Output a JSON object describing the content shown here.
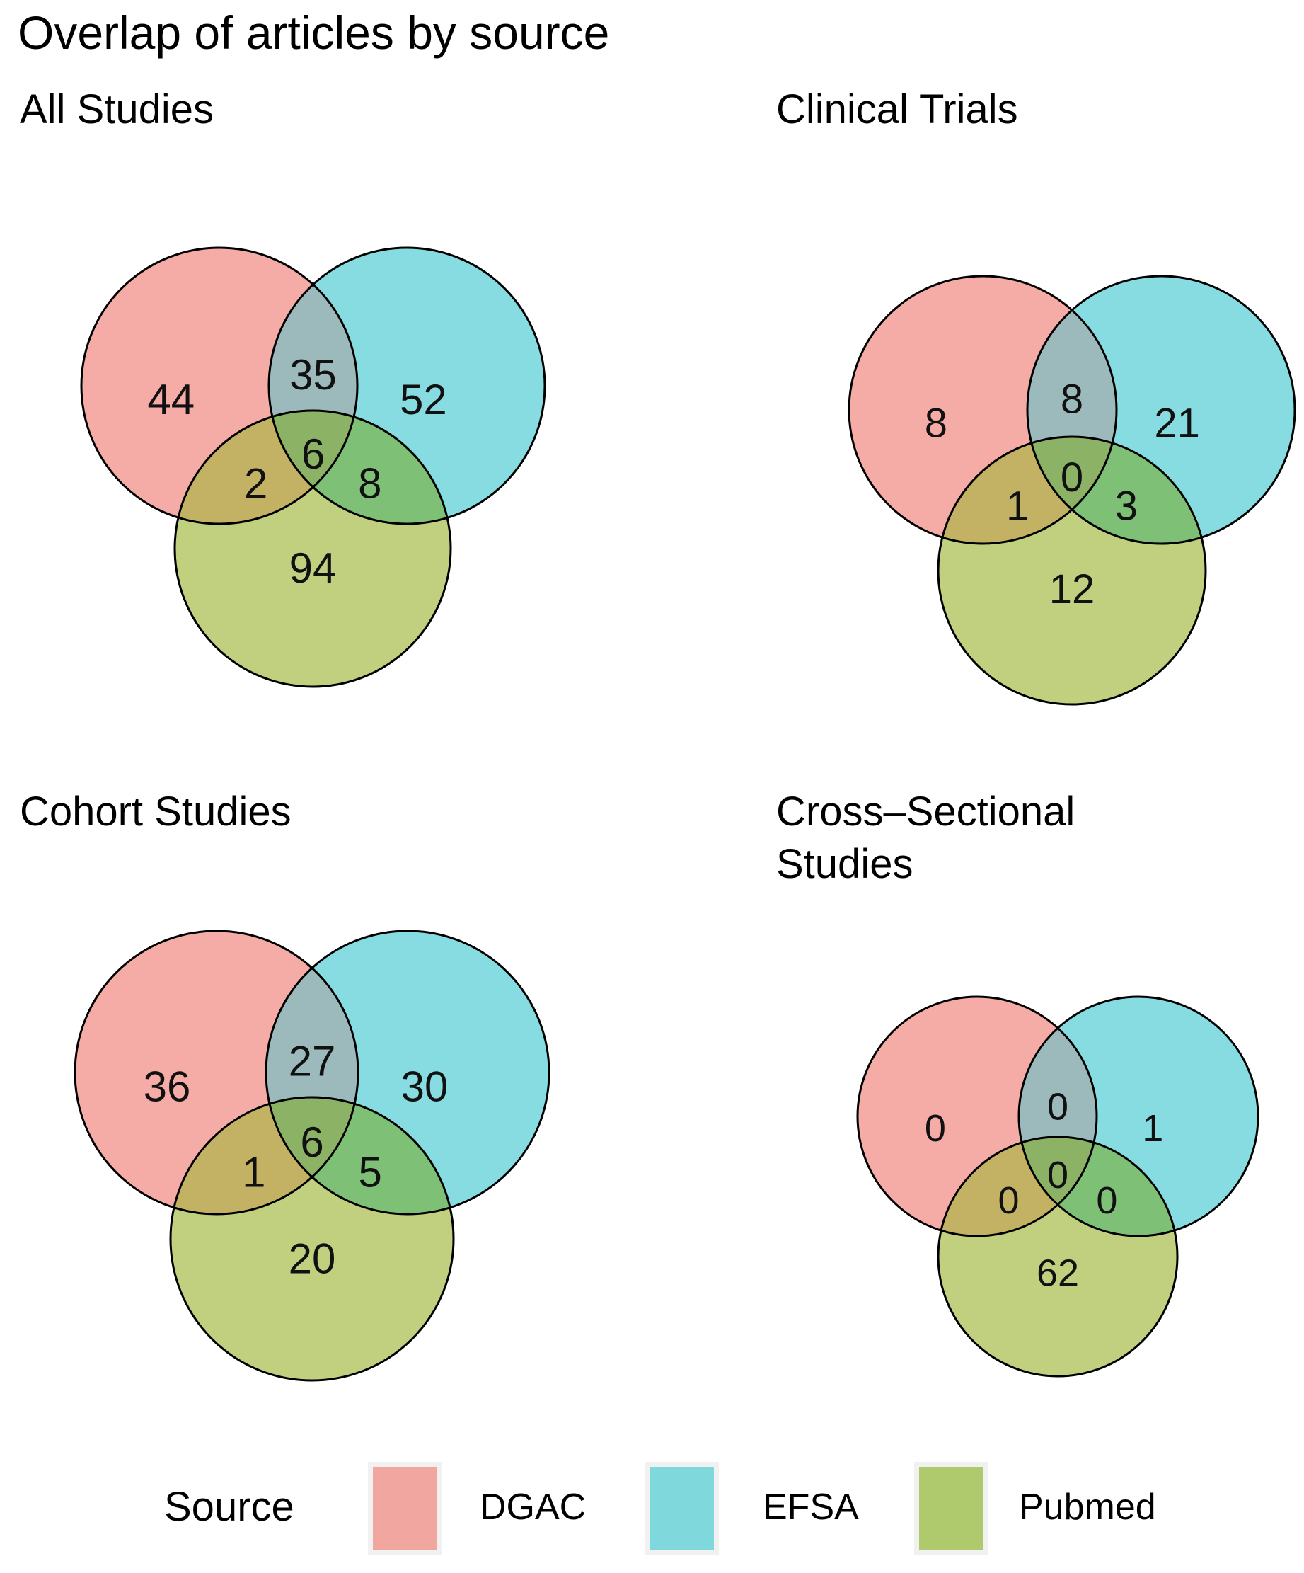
{
  "title": "Overlap of articles by source",
  "legend": {
    "label": "Source",
    "entries": [
      {
        "name": "DGAC",
        "color": "#F1A7A0"
      },
      {
        "name": "EFSA",
        "color": "#7ED8DC"
      },
      {
        "name": "Pubmed",
        "color": "#AFC96D"
      }
    ]
  },
  "chart_data": {
    "type": "venn",
    "title": "Overlap of articles by source",
    "sets": [
      "DGAC",
      "EFSA",
      "Pubmed"
    ],
    "set_colors": {
      "DGAC": "#F1A7A0",
      "EFSA": "#7ED8DC",
      "Pubmed": "#AFC96D"
    },
    "region_colors": {
      "DGAC_only": "#F5ACA6",
      "EFSA_only": "#86DCE0",
      "Pubmed_only": "#C1D07F",
      "DGAC_EFSA": "#9CBABC",
      "DGAC_Pubmed": "#C3B164",
      "EFSA_Pubmed": "#7FC077",
      "all_three": "#8CB266",
      "outline": "#000000"
    },
    "legend_position": "bottom",
    "panels": [
      {
        "title": "All Studies",
        "regions": {
          "DGAC_only": 44,
          "DGAC_EFSA": 35,
          "EFSA_only": 52,
          "DGAC_Pubmed": 2,
          "all_three": 6,
          "EFSA_Pubmed": 8,
          "Pubmed_only": 94
        }
      },
      {
        "title": "Clinical Trials",
        "regions": {
          "DGAC_only": 8,
          "DGAC_EFSA": 8,
          "EFSA_only": 21,
          "DGAC_Pubmed": 1,
          "all_three": 0,
          "EFSA_Pubmed": 3,
          "Pubmed_only": 12
        }
      },
      {
        "title": "Cohort Studies",
        "regions": {
          "DGAC_only": 36,
          "DGAC_EFSA": 27,
          "EFSA_only": 30,
          "DGAC_Pubmed": 1,
          "all_three": 6,
          "EFSA_Pubmed": 5,
          "Pubmed_only": 20
        }
      },
      {
        "title": "Cross–Sectional Studies",
        "regions": {
          "DGAC_only": 0,
          "DGAC_EFSA": 0,
          "EFSA_only": 1,
          "DGAC_Pubmed": 0,
          "all_three": 0,
          "EFSA_Pubmed": 0,
          "Pubmed_only": 62
        }
      }
    ]
  }
}
